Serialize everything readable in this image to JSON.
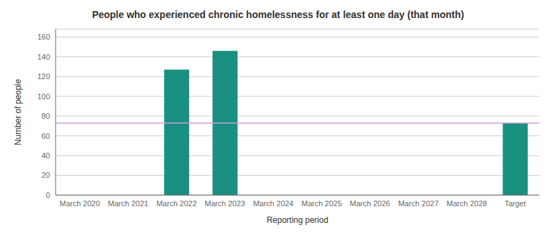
{
  "chart_data": {
    "type": "bar",
    "title": "People who experienced chronic homelessness for at least one day (that month)",
    "xlabel": "Reporting period",
    "ylabel": "Number of people",
    "categories": [
      "March 2020",
      "March 2021",
      "March 2022",
      "March 2023",
      "March 2024",
      "March 2025",
      "March 2026",
      "March 2027",
      "March 2028",
      "Target"
    ],
    "values": [
      0,
      0,
      127,
      146,
      0,
      0,
      0,
      0,
      0,
      73
    ],
    "color": "#1a9080",
    "ylim": [
      0,
      168
    ],
    "yticks": [
      0,
      20,
      40,
      60,
      80,
      100,
      120,
      140,
      160
    ],
    "grid": true,
    "reference_line": {
      "value": 73,
      "color": "#c9a0dc"
    }
  }
}
